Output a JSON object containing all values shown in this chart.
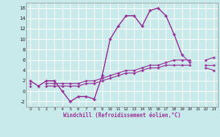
{
  "xlabel": "Windchill (Refroidissement éolien,°C)",
  "background_color": "#c8eaea",
  "grid_color": "#ffffff",
  "line_color": "#993399",
  "x": [
    0,
    1,
    2,
    3,
    4,
    5,
    6,
    7,
    8,
    9,
    10,
    11,
    12,
    13,
    14,
    15,
    16,
    17,
    18,
    19,
    20,
    21,
    22,
    23
  ],
  "line1": [
    2,
    1,
    2,
    2,
    0,
    -2,
    -1,
    -1,
    -1.5,
    3,
    10,
    12.5,
    14.5,
    14.5,
    12.5,
    15.5,
    16,
    14.5,
    11,
    7,
    null,
    null,
    null,
    null
  ],
  "line2": [
    2,
    1,
    2,
    2,
    0,
    -2,
    -1,
    -1,
    -1.5,
    3,
    10,
    12.5,
    14.5,
    14.5,
    12.5,
    15.5,
    16,
    14.5,
    11,
    7,
    5.5,
    null,
    4.5,
    4
  ],
  "line3": [
    1.5,
    null,
    1.5,
    1.5,
    1.5,
    1.5,
    1.5,
    2,
    2,
    2.5,
    3,
    3.5,
    4,
    4,
    4.5,
    5,
    5,
    5.5,
    6,
    6,
    6,
    null,
    6,
    6.5
  ],
  "line4": [
    1,
    null,
    1,
    1,
    1,
    1,
    1,
    1.5,
    1.5,
    2,
    2.5,
    3,
    3.5,
    3.5,
    4,
    4.5,
    4.5,
    5,
    5,
    5,
    5,
    null,
    5,
    5
  ],
  "ylim": [
    -3,
    17
  ],
  "xlim": [
    -0.5,
    23.5
  ],
  "yticks": [
    -2,
    0,
    2,
    4,
    6,
    8,
    10,
    12,
    14,
    16
  ],
  "xticks": [
    0,
    1,
    2,
    3,
    4,
    5,
    6,
    7,
    8,
    9,
    10,
    11,
    12,
    13,
    14,
    15,
    16,
    17,
    18,
    19,
    20,
    21,
    22,
    23
  ]
}
